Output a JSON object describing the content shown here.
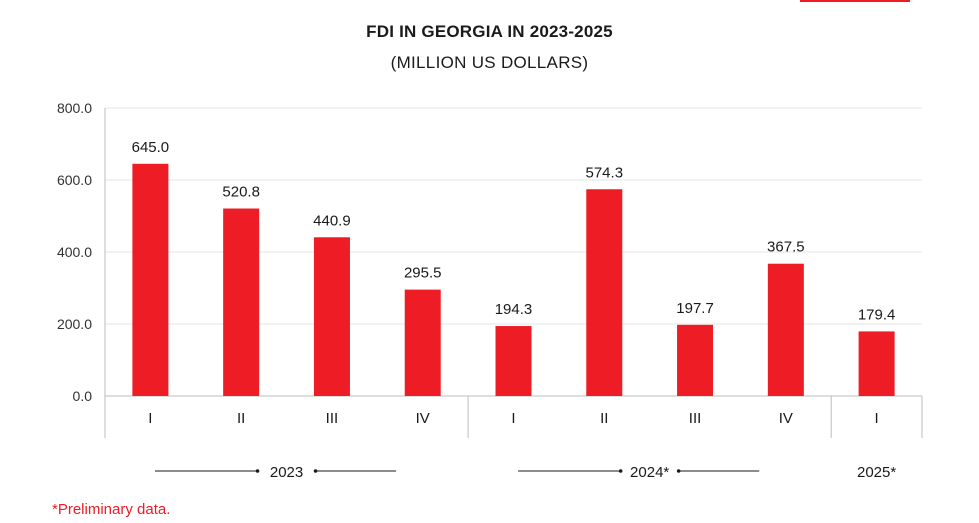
{
  "title": "FDI IN GEORGIA IN 2023-2025",
  "subtitle": "(MILLION US DOLLARS)",
  "footnote": "*Preliminary data.",
  "colors": {
    "bar": "#ee1c25",
    "grid": "#e6e6e6",
    "axis": "#bdbdbd",
    "accent": "#ee1c25"
  },
  "chart_data": {
    "type": "bar",
    "title": "FDI IN GEORGIA IN 2023-2025",
    "subtitle": "(MILLION US DOLLARS)",
    "categories": [
      "I",
      "II",
      "III",
      "IV",
      "I",
      "II",
      "III",
      "IV",
      "I"
    ],
    "groups": [
      {
        "label": "2023",
        "categories": [
          "I",
          "II",
          "III",
          "IV"
        ]
      },
      {
        "label": "2024*",
        "categories": [
          "I",
          "II",
          "III",
          "IV"
        ]
      },
      {
        "label": "2025*",
        "categories": [
          "I"
        ]
      }
    ],
    "values": [
      645.0,
      520.8,
      440.9,
      295.5,
      194.3,
      574.3,
      197.7,
      367.5,
      179.4
    ],
    "data_labels": [
      "645.0",
      "520.8",
      "440.9",
      "295.5",
      "194.3",
      "574.3",
      "197.7",
      "367.5",
      "179.4"
    ],
    "yticks": [
      "0.0",
      "200.0",
      "400.0",
      "600.0",
      "800.0"
    ],
    "ylim": [
      0,
      800
    ],
    "grid": true,
    "legend": "none"
  }
}
